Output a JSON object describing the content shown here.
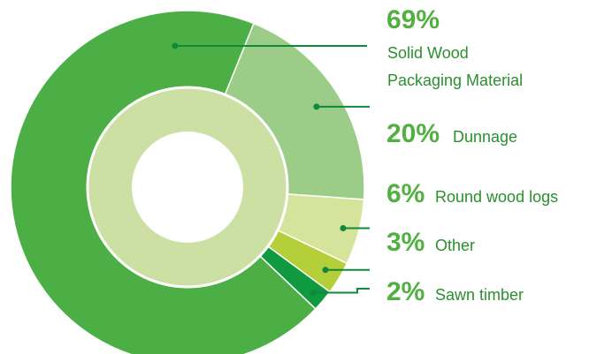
{
  "chart_data": {
    "type": "pie",
    "title": "",
    "slices": [
      {
        "key": "solid_wood",
        "value": 69,
        "pct_label": "69%",
        "label_lines": [
          "Solid Wood",
          "Packaging Material"
        ],
        "color": "#4caf45"
      },
      {
        "key": "dunnage",
        "value": 20,
        "pct_label": "20%",
        "label_lines": [
          "Dunnage"
        ],
        "color": "#9bcc88"
      },
      {
        "key": "round_wood",
        "value": 6,
        "pct_label": "6%",
        "label_lines": [
          "Round wood logs"
        ],
        "color": "#d6e39a"
      },
      {
        "key": "other",
        "value": 3,
        "pct_label": "3%",
        "label_lines": [
          "Other"
        ],
        "color": "#b5cf3a"
      },
      {
        "key": "sawn_timber",
        "value": 2,
        "pct_label": "2%",
        "label_lines": [
          "Sawn timber"
        ],
        "color": "#0f9a3f"
      }
    ],
    "inner_ring_color": "#cde0a3",
    "center_color": "#ffffff",
    "leader_color": "#0f8a3a",
    "pct_color": "#52b043",
    "label_color": "#2a8f2f"
  }
}
